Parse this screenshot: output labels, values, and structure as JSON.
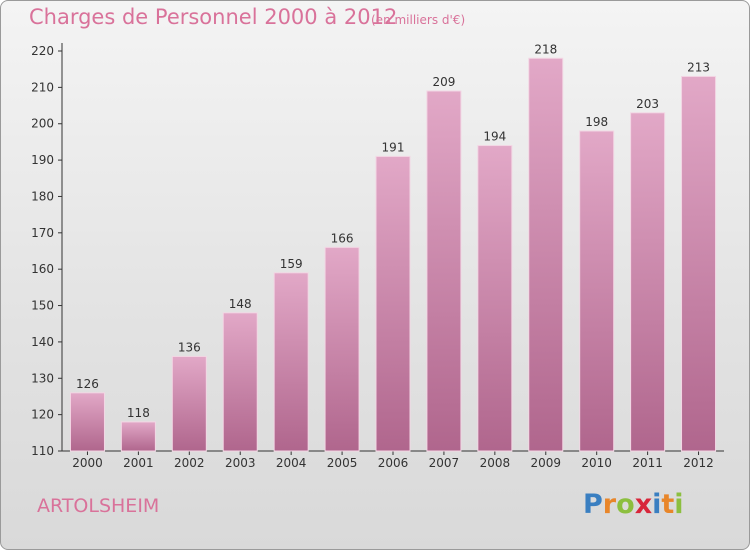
{
  "page": {
    "title": "Charges de Personnel 2000 à 2012",
    "subtitle": "(en milliers d'€)"
  },
  "footer": {
    "location": "ARTOLSHEIM"
  },
  "logo": {
    "letters": [
      "P",
      "r",
      "o",
      "x",
      "i",
      "t",
      "i"
    ],
    "colors": [
      "#3a7fc1",
      "#e8862a",
      "#8cbf3f",
      "#d8263a",
      "#3a7fc1",
      "#e8862a",
      "#8cbf3f"
    ]
  },
  "colors": {
    "bar": "#c97fa6",
    "bar_top": "#e2a8c7",
    "bar_bottom": "#b0668d",
    "text": "#d9729a",
    "axis": "#333333"
  },
  "chart_data": {
    "type": "bar",
    "title": "Charges de Personnel 2000 à 2012",
    "subtitle": "(en milliers d'€)",
    "xlabel": "",
    "ylabel": "",
    "categories": [
      "2000",
      "2001",
      "2002",
      "2003",
      "2004",
      "2005",
      "2006",
      "2007",
      "2008",
      "2009",
      "2010",
      "2011",
      "2012"
    ],
    "values": [
      126,
      118,
      136,
      148,
      159,
      166,
      191,
      209,
      194,
      218,
      198,
      203,
      213
    ],
    "ylim": [
      110,
      220
    ],
    "yticks": [
      110,
      120,
      130,
      140,
      150,
      160,
      170,
      180,
      190,
      200,
      210,
      220
    ],
    "grid": false,
    "legend": "none"
  }
}
